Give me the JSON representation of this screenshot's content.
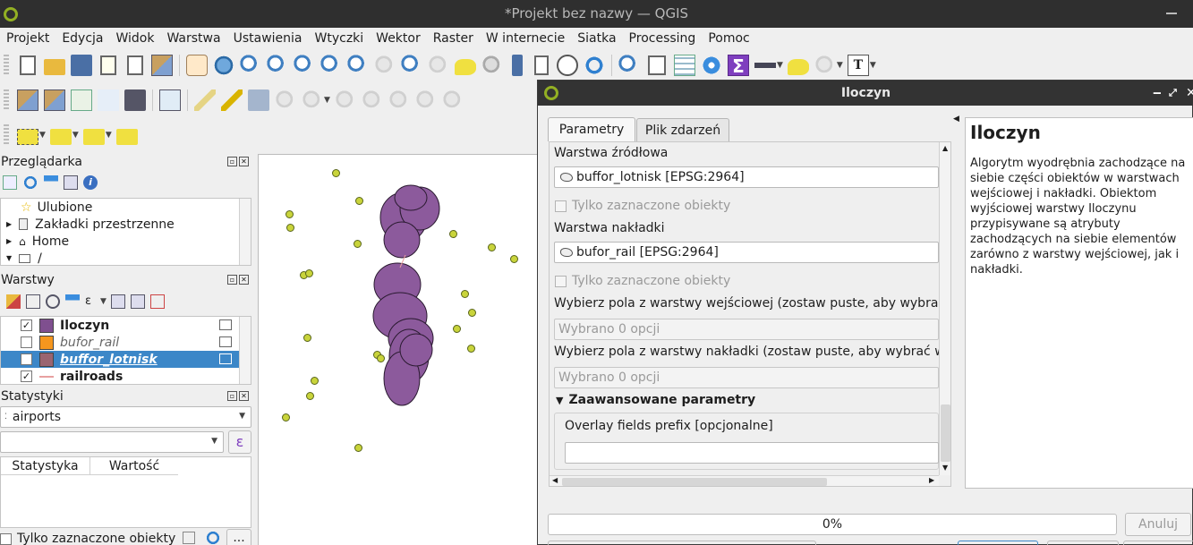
{
  "window": {
    "title": "*Projekt bez nazwy — QGIS"
  },
  "menu": [
    "Projekt",
    "Edycja",
    "Widok",
    "Warstwa",
    "Ustawienia",
    "Wtyczki",
    "Wektor",
    "Raster",
    "W internecie",
    "Siatka",
    "Processing",
    "Pomoc"
  ],
  "browser": {
    "title": "Przeglądarka",
    "items": [
      {
        "label": "Ulubione",
        "icon": "star-icon"
      },
      {
        "label": "Zakładki przestrzenne",
        "icon": "bookmark-icon"
      },
      {
        "label": "Home",
        "icon": "home-icon"
      },
      {
        "label": "/",
        "icon": "folder-icon"
      }
    ]
  },
  "layers": {
    "title": "Warstwy",
    "items": [
      {
        "label": "Iloczyn",
        "checked": "✓",
        "color": "#7f4f8f",
        "style": "bold"
      },
      {
        "label": "bufor_rail",
        "checked": "",
        "color": "#f5961e",
        "style": "italic"
      },
      {
        "label": "buffor_lotnisk",
        "checked": "",
        "color": "#9a6470",
        "style": "selected"
      },
      {
        "label": "railroads",
        "checked": "✓",
        "color": "#e8a0a0",
        "style": "bold-line"
      }
    ]
  },
  "stats": {
    "title": "Statystyki",
    "layer": "airports",
    "col_stat": "Statystyka",
    "col_value": "Wartość",
    "only_selected": "Tylko zaznaczone obiekty",
    "expr_button": "ε",
    "more_button": "..."
  },
  "dialog": {
    "title": "Iloczyn",
    "tabs": [
      "Parametry",
      "Plik zdarzeń"
    ],
    "source_label": "Warstwa źródłowa",
    "source_value": "buffor_lotnisk [EPSG:2964]",
    "only_selected": "Tylko zaznaczone obiekty",
    "overlay_label": "Warstwa nakładki",
    "overlay_value": "bufor_rail [EPSG:2964]",
    "input_fields_label": "Wybierz pola z warstwy wejściowej (zostaw puste, aby wybrać w",
    "input_fields_value": "Wybrano 0 opcji",
    "overlay_fields_label": "Wybierz pola z warstwy nakładki (zostaw puste, aby wybrać wsz",
    "overlay_fields_value": "Wybrano 0 opcji",
    "advanced_label": "Zaawansowane parametry",
    "prefix_label": "Overlay fields prefix [opcjonalne]",
    "prefix_value": "",
    "help_title": "Iloczyn",
    "help_text": "Algorytm wyodrębnia zachodzące na siebie części obiektów w warstwach wejściowej i nakładki. Obiektom wyjściowej warstwy Iloczynu przypisywane są atrybuty zachodzących na siebie elementów zarówno z warstwy wejściowej, jak i nakładki.",
    "progress_text": "0%",
    "progress_value": 0,
    "cancel_label": "Anuluj"
  },
  "colors": {
    "accent": "#3c87c8",
    "sigma": "#7f3fbf",
    "points": "#c9d43b",
    "polygons": "#8c5a9c"
  }
}
